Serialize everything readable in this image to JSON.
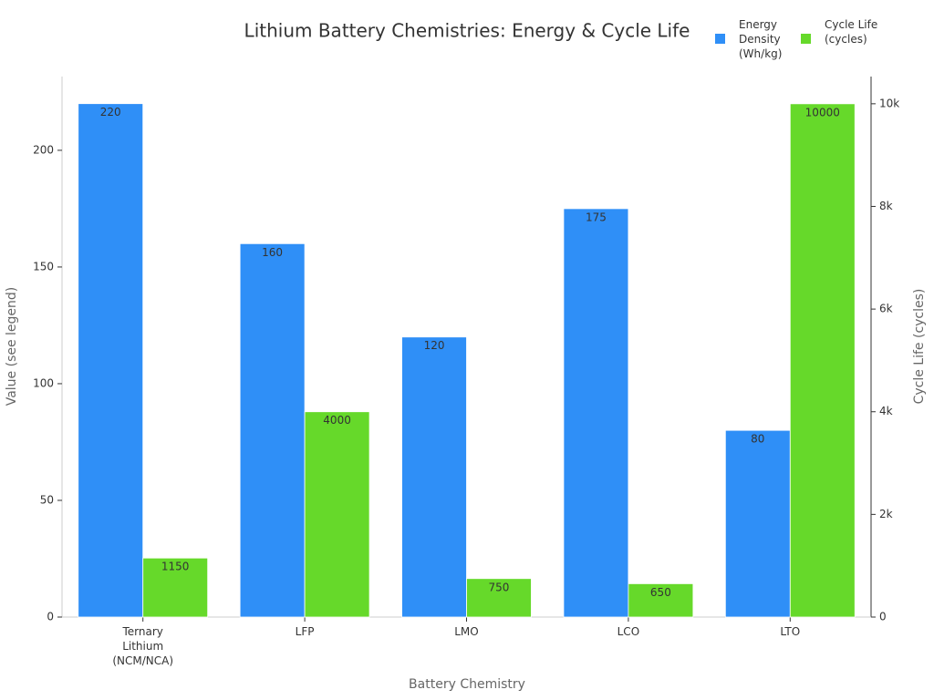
{
  "chart_data": {
    "type": "bar",
    "title": "Lithium Battery Chemistries: Energy & Cycle Life",
    "x_label": "Battery Chemistry",
    "y_label": "Value (see legend)",
    "y2_label": "Cycle Life (cycles)",
    "categories": [
      "Ternary Lithium (NCM/NCA)",
      "LFP",
      "LMO",
      "LCO",
      "LTO"
    ],
    "series": [
      {
        "name": "Energy Density (Wh/kg)",
        "color": "#2f8ff7",
        "values": [
          220,
          160,
          120,
          175,
          80
        ]
      },
      {
        "name": "Cycle Life (cycles)",
        "color": "#66d92a",
        "axis": "y2",
        "values": [
          1150,
          4000,
          750,
          650,
          10000
        ]
      }
    ],
    "ylim": [
      0,
      231.6
    ],
    "yticks": [
      0,
      50,
      100,
      150,
      200
    ],
    "y2lim": [
      0,
      10530
    ],
    "y2ticks": [
      0,
      {
        "value": 2000,
        "label": "2k"
      },
      {
        "value": 4000,
        "label": "4k"
      },
      {
        "value": 6000,
        "label": "6k"
      },
      {
        "value": 8000,
        "label": "8k"
      },
      {
        "value": 10000,
        "label": "10k"
      }
    ],
    "grid": false,
    "legend": "top-right"
  }
}
